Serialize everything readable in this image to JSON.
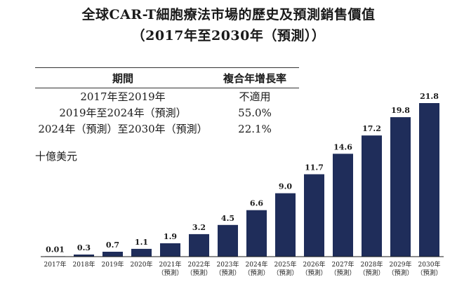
{
  "chart_data": {
    "type": "bar",
    "title": "全球CAR-T細胞療法市場的歷史及預測銷售價值",
    "subtitle": "（2017年至2030年（預測））",
    "ylabel": "十億美元",
    "xlabel": "",
    "categories": [
      [
        "2017年"
      ],
      [
        "2018年"
      ],
      [
        "2019年"
      ],
      [
        "2020年"
      ],
      [
        "2021年",
        "（預測）"
      ],
      [
        "2022年",
        "（預測）"
      ],
      [
        "2023年",
        "（預測）"
      ],
      [
        "2024年",
        "（預測）"
      ],
      [
        "2025年",
        "（預測）"
      ],
      [
        "2026年",
        "（預測）"
      ],
      [
        "2027年",
        "（預測）"
      ],
      [
        "2028年",
        "（預測）"
      ],
      [
        "2029年",
        "（預測）"
      ],
      [
        "2030年",
        "（預測）"
      ]
    ],
    "values": [
      0.01,
      0.3,
      0.7,
      1.1,
      1.9,
      3.2,
      4.5,
      6.6,
      9.0,
      11.7,
      14.6,
      17.2,
      19.8,
      21.8
    ],
    "value_labels": [
      "0.01",
      "0.3",
      "0.7",
      "1.1",
      "1.9",
      "3.2",
      "4.5",
      "6.6",
      "9.0",
      "11.7",
      "14.6",
      "17.2",
      "19.8",
      "21.8"
    ],
    "ylim": [
      0,
      22
    ],
    "bar_color": "#1f2d5a",
    "grid": false,
    "legend": "none"
  },
  "cagr_table": {
    "headers": [
      "期間",
      "複合年增長率"
    ],
    "rows": [
      [
        "2017年至2019年",
        "不適用"
      ],
      [
        "2019年至2024年（預測）",
        "55.0%"
      ],
      [
        "2024年（預測）至2030年（預測）",
        "22.1%"
      ]
    ]
  }
}
